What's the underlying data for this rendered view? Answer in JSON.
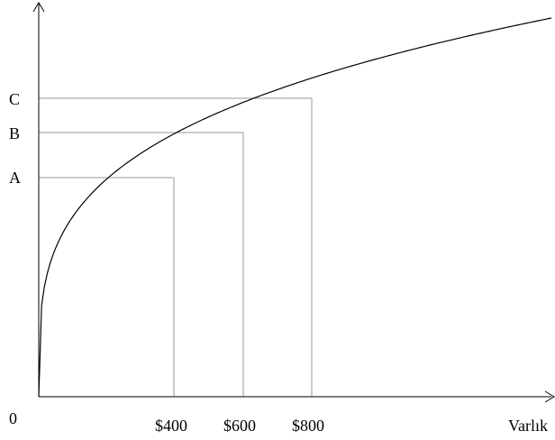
{
  "chart_data": {
    "type": "line",
    "title": "",
    "xlabel": "Varlık",
    "ylabel": "",
    "origin_label": "0",
    "x_tick_labels": [
      "$400",
      "$600",
      "$800"
    ],
    "y_tick_labels": [
      "A",
      "B",
      "C"
    ],
    "series": [
      {
        "values": []
      }
    ],
    "marked_points": [
      {
        "x": 400,
        "x_label": "$400",
        "y_label": "A"
      },
      {
        "x": 600,
        "x_label": "$600",
        "y_label": "B"
      },
      {
        "x": 800,
        "x_label": "$800",
        "y_label": "C"
      }
    ],
    "curve_shape": "concave-increasing",
    "xlim": [
      0,
      1500
    ],
    "grid": false,
    "legend": "none"
  }
}
